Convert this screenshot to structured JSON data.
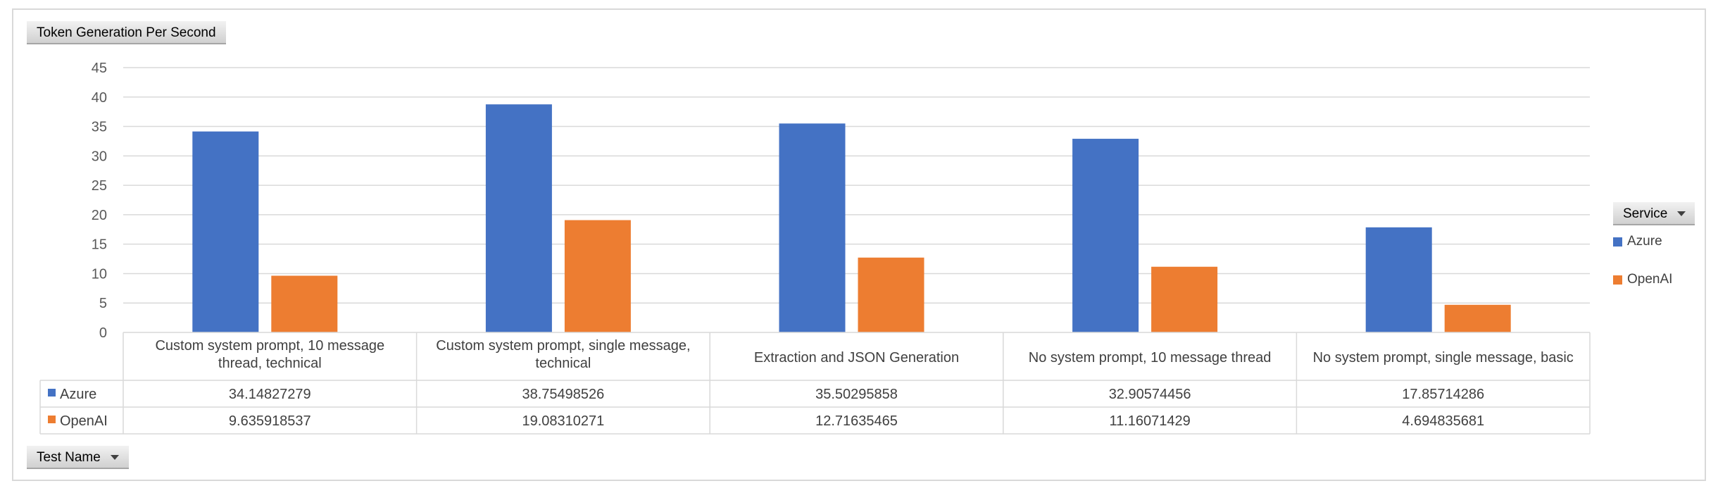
{
  "pivot": {
    "value_field": "Token Generation Per Second",
    "row_field": "Test Name",
    "column_field": "Service"
  },
  "chart_data": {
    "type": "bar",
    "categories": [
      [
        "Custom system prompt, 10 message",
        "thread, technical"
      ],
      [
        "Custom system prompt, single message,",
        "technical"
      ],
      [
        "Extraction and JSON Generation"
      ],
      [
        "No system prompt, 10 message thread"
      ],
      [
        "No system prompt, single message, basic"
      ]
    ],
    "series": [
      {
        "name": "Azure",
        "color": "#4472c4",
        "values": [
          34.14827279,
          38.75498526,
          35.50295858,
          32.90574456,
          17.85714286
        ],
        "labels": [
          "34.14827279",
          "38.75498526",
          "35.50295858",
          "32.90574456",
          "17.85714286"
        ]
      },
      {
        "name": "OpenAI",
        "color": "#ed7d31",
        "values": [
          9.635918537,
          19.08310271,
          12.71635465,
          11.16071429,
          4.694835681
        ],
        "labels": [
          "9.635918537",
          "19.08310271",
          "12.71635465",
          "11.16071429",
          "4.694835681"
        ]
      }
    ],
    "ylim": [
      0,
      45
    ],
    "yticks": [
      "0",
      "5",
      "10",
      "15",
      "20",
      "25",
      "30",
      "35",
      "40",
      "45"
    ],
    "grid": true,
    "legend": "right",
    "data_table": true
  }
}
